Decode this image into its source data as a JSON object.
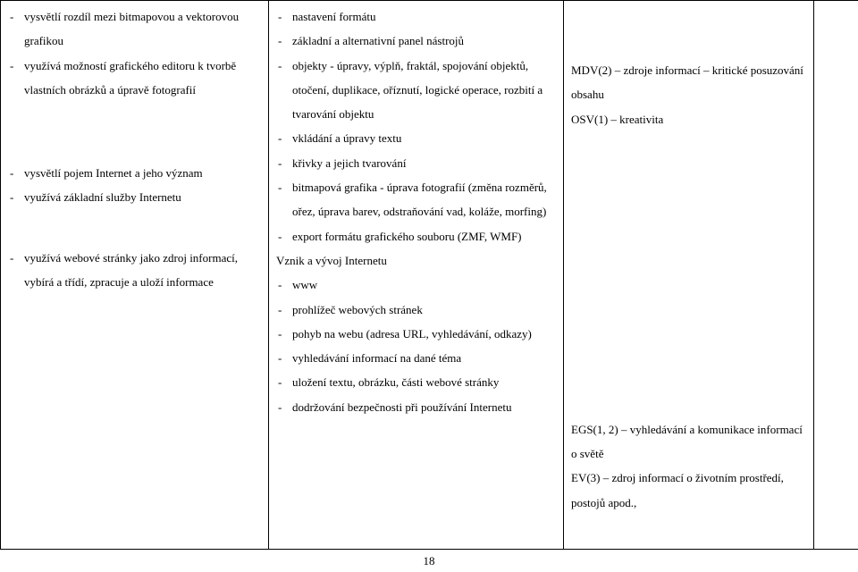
{
  "col1": {
    "group1": [
      "vysvětlí rozdíl mezi bitmapovou a vektorovou grafikou",
      "využívá možností grafického editoru k tvorbě vlastních obrázků a úpravě fotografií"
    ],
    "group2": [
      "vysvětlí pojem Internet a jeho význam",
      "využívá základní služby Internetu"
    ],
    "group3": [
      "využívá webové stránky jako zdroj informací, vybírá a třídí, zpracuje a uloží informace"
    ]
  },
  "col2": {
    "top": [
      "nastavení formátu",
      "základní a alternativní panel nástrojů",
      "objekty - úpravy, výplň, fraktál, spojování objektů, otočení, duplikace, oříznutí, logické operace, rozbití a tvarování objektu",
      "vkládání a úpravy textu",
      "křivky a jejich tvarování",
      "bitmapová grafika - úprava fotografií (změna rozměrů, ořez, úprava barev, odstraňování vad, koláže, morfing)",
      "export formátu grafického souboru (ZMF, WMF)"
    ],
    "heading": "Vznik a vývoj Internetu",
    "bottom": [
      "www",
      "prohlížeč webových stránek",
      "pohyb na webu (adresa URL, vyhledávání, odkazy)",
      "vyhledávání informací na dané téma",
      "uložení textu, obrázku, části webové stránky",
      "dodržování bezpečnosti při používání Internetu"
    ]
  },
  "col3": {
    "block1": [
      "MDV(2) – zdroje informací – kritické posuzování obsahu",
      "OSV(1) – kreativita"
    ],
    "block2": [
      "EGS(1, 2) – vyhledávání a komunikace informací o světě",
      "",
      "EV(3) – zdroj informací o životním prostředí, postojů apod.,"
    ]
  },
  "pageNumber": "18"
}
